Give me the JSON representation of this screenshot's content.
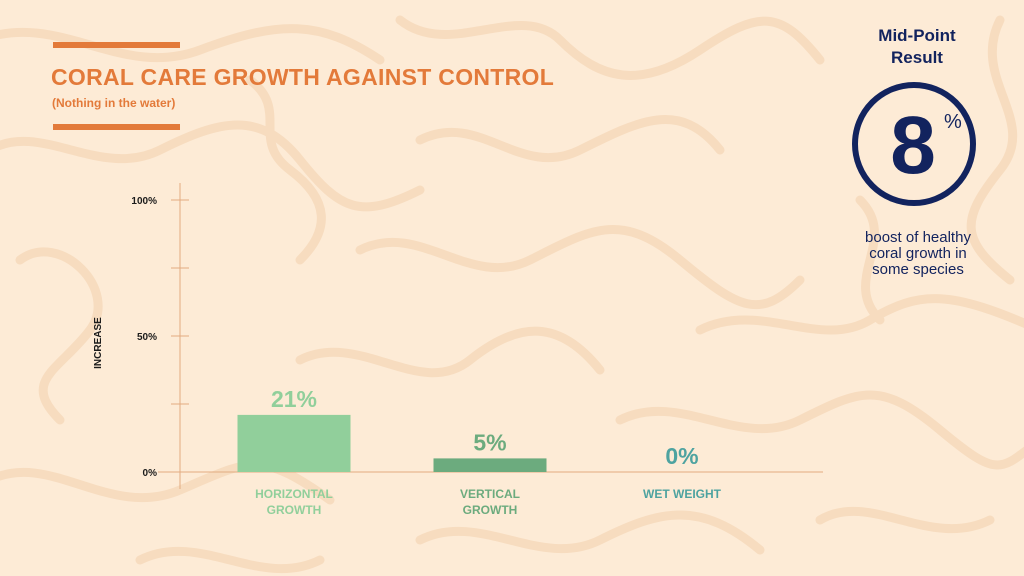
{
  "theme": {
    "background": "#fdebd6",
    "pattern": "#f7dcbf",
    "accent": "#e37a3a",
    "navy": "#12235e",
    "axis": "#e2ab80",
    "label_dark": "#1b1b1b"
  },
  "header": {
    "title": "CORAL CARE GROWTH AGAINST CONTROL",
    "subtitle": "(Nothing in the water)"
  },
  "chart_data": {
    "type": "bar",
    "title": "CORAL CARE GROWTH AGAINST CONTROL",
    "subtitle": "(Nothing in the water)",
    "ylabel": "INCREASE",
    "xlabel": "",
    "ylim": [
      0,
      100
    ],
    "y_ticks": [
      {
        "value": 100,
        "label": "100%"
      },
      {
        "value": 75,
        "label": ""
      },
      {
        "value": 50,
        "label": "50%"
      },
      {
        "value": 25,
        "label": ""
      },
      {
        "value": 0,
        "label": "0%"
      }
    ],
    "grid": false,
    "categories": [
      {
        "lines": [
          "HORIZONTAL",
          "GROWTH"
        ],
        "value": 21,
        "label": "21%",
        "bar_color": "#91cf9b",
        "text_color": "#91cf9b"
      },
      {
        "lines": [
          "VERTICAL",
          "GROWTH"
        ],
        "value": 5,
        "label": "5%",
        "bar_color": "#6cab7e",
        "text_color": "#6cab7e"
      },
      {
        "lines": [
          "WET WEIGHT"
        ],
        "value": 0,
        "label": "0%",
        "bar_color": "#4ea3a0",
        "text_color": "#4ea3a0"
      }
    ]
  },
  "callout": {
    "title_lines": [
      "Mid-Point",
      "Result"
    ],
    "value": "8",
    "unit": "%",
    "caption_lines": [
      "boost of healthy",
      "coral growth in",
      "some species"
    ]
  }
}
